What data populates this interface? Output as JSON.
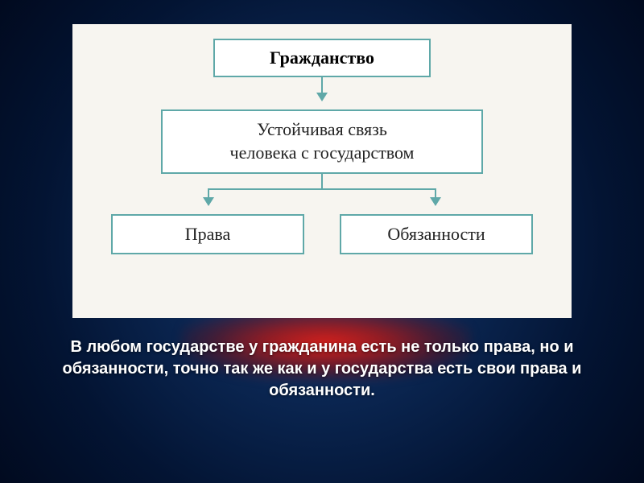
{
  "diagram": {
    "type": "flowchart",
    "background_color": "#f7f5f0",
    "box_border_color": "#5fa8a8",
    "box_fill_color": "#ffffff",
    "arrow_color": "#5fa8a8",
    "nodes": {
      "top": {
        "text": "Гражданство",
        "font_weight": "bold",
        "font_size": 22
      },
      "middle": {
        "line1": "Устойчивая связь",
        "line2": "человека с государством",
        "font_size": 22
      },
      "bottom_left": {
        "text": "Права",
        "font_size": 22
      },
      "bottom_right": {
        "text": "Обязанности",
        "font_size": 22
      }
    }
  },
  "caption": {
    "text": "В любом государстве у гражданина есть не только права, но и обязанности, точно так же как и у государства есть свои права и обязанности.",
    "color": "#ffffff",
    "font_size": 20,
    "font_weight": "bold"
  },
  "background": {
    "gradient_inner": "#1a4a8a",
    "gradient_outer": "#010a1f",
    "accent_blur_color": "#e81e14"
  }
}
